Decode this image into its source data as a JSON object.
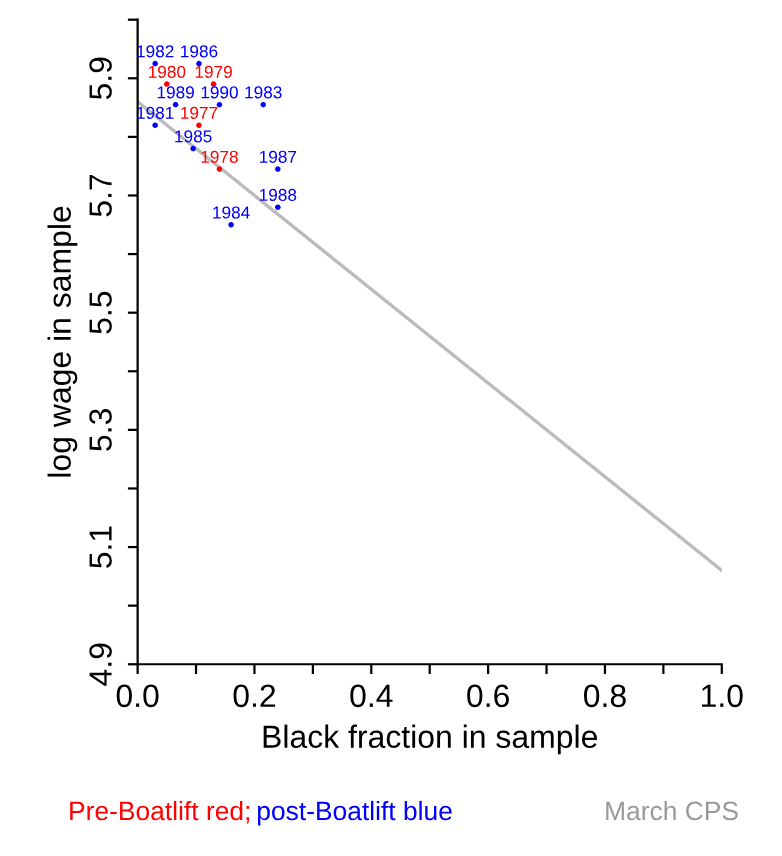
{
  "chart_data": {
    "type": "scatter",
    "xlabel": "Black fraction in sample",
    "ylabel": "log wage in sample",
    "xlim": [
      0,
      1
    ],
    "ylim": [
      4.9,
      6.0
    ],
    "xticks": [
      {
        "value": 0,
        "label": "0.0"
      },
      {
        "value": 0.1,
        "label": null
      },
      0.2,
      {
        "value": 0.3,
        "label": null
      },
      0.4,
      {
        "value": 0.5,
        "label": null
      },
      0.6,
      {
        "value": 0.7,
        "label": null
      },
      0.8,
      {
        "value": 0.9,
        "label": null
      },
      {
        "value": 1,
        "label": "1.0"
      }
    ],
    "yticks": [
      4.9,
      {
        "value": 5.0,
        "label": null
      },
      5.1,
      {
        "value": 5.2,
        "label": null
      },
      5.3,
      {
        "value": 5.4,
        "label": null
      },
      5.5,
      {
        "value": 5.6,
        "label": null
      },
      5.7,
      {
        "value": 5.8,
        "label": null
      },
      5.9,
      {
        "value": 6.0,
        "label": null
      }
    ],
    "grid": false,
    "legend": false,
    "series": [
      {
        "type": "line",
        "color": "#bbbbbb",
        "x": [
          0,
          1
        ],
        "values": [
          5.86,
          5.06
        ]
      },
      {
        "color": "#ff0000",
        "marker": "circle",
        "x": [
          0.105,
          0.14,
          0.13,
          0.05
        ],
        "values": [
          5.82,
          5.745,
          5.89,
          5.89
        ]
      },
      {
        "color": "#0000ff",
        "marker": "circle",
        "x": [
          0.03,
          0.03,
          0.215,
          0.16,
          0.095,
          0.105,
          0.24,
          0.24,
          0.065,
          0.14
        ],
        "values": [
          5.82,
          5.925,
          5.855,
          5.65,
          5.78,
          5.925,
          5.745,
          5.68,
          5.855,
          5.855
        ]
      }
    ],
    "annotations": [
      {
        "text": "1977",
        "x": 0.105,
        "y": 5.82
      },
      {
        "text": "1978",
        "x": 0.14,
        "y": 5.745
      },
      {
        "text": "1979",
        "x": 0.13,
        "y": 5.89
      },
      {
        "text": "1980",
        "x": 0.05,
        "y": 5.89
      },
      {
        "text": "1981",
        "x": 0.03,
        "y": 5.82
      },
      {
        "text": "1982",
        "x": 0.03,
        "y": 5.925
      },
      {
        "text": "1983",
        "x": 0.215,
        "y": 5.855
      },
      {
        "text": "1984",
        "x": 0.16,
        "y": 5.65
      },
      {
        "text": "1985",
        "x": 0.095,
        "y": 5.78
      },
      {
        "text": "1986",
        "x": 0.105,
        "y": 5.925
      },
      {
        "text": "1987",
        "x": 0.24,
        "y": 5.745
      },
      {
        "text": "1988",
        "x": 0.24,
        "y": 5.68
      },
      {
        "text": "1989",
        "x": 0.065,
        "y": 5.855
      },
      {
        "text": "1990",
        "x": 0.14,
        "y": 5.855
      },
      "Pre-Boatlift red;",
      "post-Boatlift blue",
      "March CPS"
    ]
  }
}
